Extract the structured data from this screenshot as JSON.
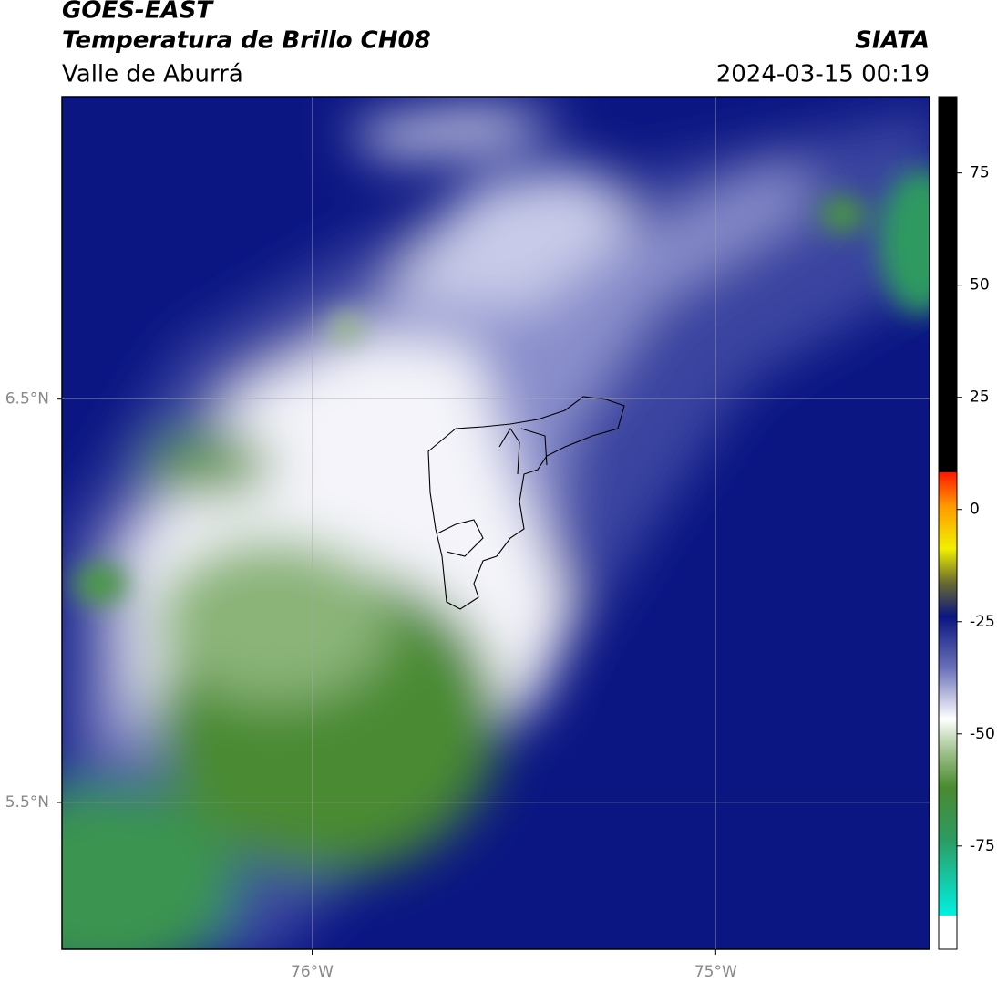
{
  "header": {
    "title": "GOES-EAST",
    "subtitle": "Temperatura de Brillo CH08",
    "region": "Valle de Aburrá",
    "source": "SIATA",
    "datetime": "2024-03-15 00:19"
  },
  "map": {
    "xlim": [
      -76.62,
      -74.47
    ],
    "ylim": [
      5.136,
      7.25
    ],
    "xticks": [
      {
        "value": -76,
        "label": "76°W"
      },
      {
        "value": -75,
        "label": "75°W"
      }
    ],
    "yticks": [
      {
        "value": 6.5,
        "label": "6.5°N"
      },
      {
        "value": 5.5,
        "label": "5.5°N"
      }
    ],
    "grid": true,
    "colorbar": {
      "lim": [
        -98,
        92
      ],
      "ticks": [
        75,
        50,
        25,
        0,
        -25,
        -50,
        -75
      ]
    }
  }
}
